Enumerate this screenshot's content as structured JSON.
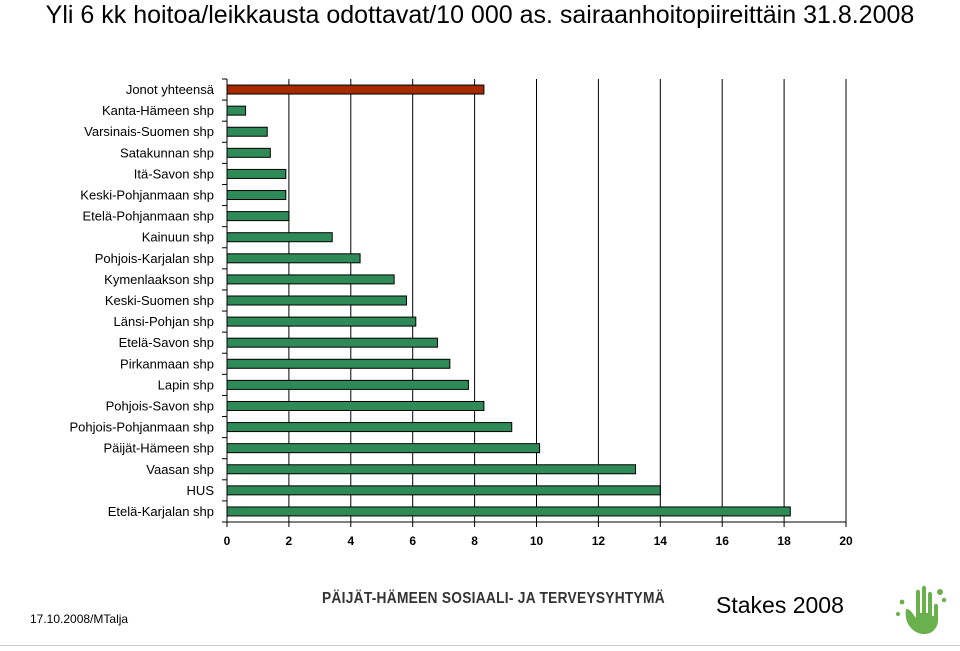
{
  "title": "Yli 6 kk hoitoa/leikkausta odottavat/10 000 as. sairaanhoitopiireittäin 31.8.2008",
  "colors": {
    "highlight": "#a52a00",
    "bar": "#2e8b57",
    "axis": "#000000",
    "grid": "#000000"
  },
  "chart_data": {
    "type": "bar",
    "orientation": "horizontal",
    "title": "Yli 6 kk hoitoa/leikkausta odottavat/10 000 as. sairaanhoitopiireittäin 31.8.2008",
    "categories": [
      "Jonot yhteensä",
      "Kanta-Hämeen shp",
      "Varsinais-Suomen shp",
      "Satakunnan shp",
      "Itä-Savon shp",
      "Keski-Pohjanmaan shp",
      "Etelä-Pohjanmaan shp",
      "Kainuun shp",
      "Pohjois-Karjalan shp",
      "Kymenlaakson shp",
      "Keski-Suomen shp",
      "Länsi-Pohjan shp",
      "Etelä-Savon shp",
      "Pirkanmaan shp",
      "Lapin shp",
      "Pohjois-Savon shp",
      "Pohjois-Pohjanmaan shp",
      "Päijät-Hämeen shp",
      "Vaasan shp",
      "HUS",
      "Etelä-Karjalan shp"
    ],
    "values": [
      8.3,
      0.6,
      1.3,
      1.4,
      1.9,
      1.9,
      2.0,
      3.4,
      4.3,
      5.4,
      5.8,
      6.1,
      6.8,
      7.2,
      7.8,
      8.3,
      9.2,
      10.1,
      13.2,
      14.0,
      18.2
    ],
    "highlight_index": 0,
    "xlim": [
      0,
      20
    ],
    "xticks": [
      0,
      2,
      4,
      6,
      8,
      10,
      12,
      14,
      16,
      18,
      20
    ],
    "grid": "vertical",
    "legend": "none"
  },
  "footer": {
    "date": "17.10.2008/MTalja",
    "organization": "PÄIJÄT-HÄMEEN SOSIAALI- JA TERVEYSYHTYMÄ",
    "source": "Stakes 2008",
    "logo": "hand-logo-icon"
  }
}
